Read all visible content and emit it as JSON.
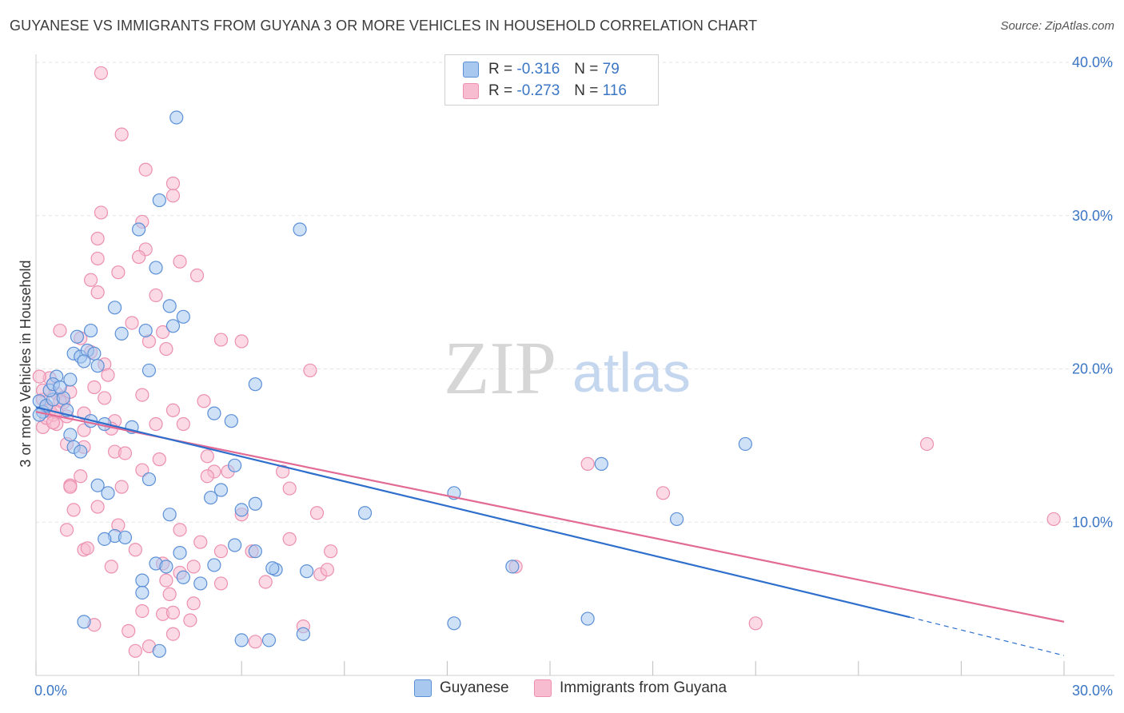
{
  "title": "GUYANESE VS IMMIGRANTS FROM GUYANA 3 OR MORE VEHICLES IN HOUSEHOLD CORRELATION CHART",
  "source": "Source: ZipAtlas.com",
  "watermark": {
    "zip": "ZIP",
    "atlas": "atlas"
  },
  "legend": {
    "r_label": "R =",
    "n_label": "N =",
    "series1": {
      "r": "-0.316",
      "n": "79"
    },
    "series2": {
      "r": "-0.273",
      "n": "116"
    }
  },
  "bottom_legend": {
    "series1": "Guyanese",
    "series2": "Immigrants from Guyana"
  },
  "colors": {
    "blue_fill": "#a8c8f0",
    "blue_stroke": "#5b8fd6",
    "blue_line": "#2f6fcc",
    "pink_fill": "#f8bcd0",
    "pink_stroke": "#ec8fb0",
    "pink_line": "#e26a95",
    "tick": "#3b76c4",
    "grid": "#e3e3e3"
  },
  "chart_data": {
    "type": "scatter",
    "title": "GUYANESE VS IMMIGRANTS FROM GUYANA 3 OR MORE VEHICLES IN HOUSEHOLD CORRELATION CHART",
    "xlabel": "",
    "ylabel": "3 or more Vehicles in Household",
    "xlim": [
      0,
      30
    ],
    "ylim": [
      0,
      40
    ],
    "x_tick_labels": [
      "0.0%",
      "30.0%"
    ],
    "y_ticks": [
      10,
      20,
      30,
      40
    ],
    "y_tick_labels": [
      "10.0%",
      "20.0%",
      "30.0%",
      "40.0%"
    ],
    "series": [
      {
        "name": "Guyanese",
        "r": -0.316,
        "n": 79,
        "trend": {
          "x0": 0,
          "y0": 17.5,
          "x1": 25.5,
          "y1": 3.8,
          "dash_to_x": 30,
          "dash_to_y": 1.3
        },
        "points": [
          [
            0.1,
            17.9
          ],
          [
            0.2,
            17.2
          ],
          [
            0.3,
            17.6
          ],
          [
            0.5,
            18.0
          ],
          [
            0.4,
            18.6
          ],
          [
            0.6,
            19.5
          ],
          [
            0.5,
            19.0
          ],
          [
            1.0,
            19.3
          ],
          [
            0.8,
            18.1
          ],
          [
            1.1,
            21.0
          ],
          [
            1.3,
            20.8
          ],
          [
            1.2,
            22.1
          ],
          [
            1.5,
            21.2
          ],
          [
            1.7,
            21.0
          ],
          [
            1.6,
            22.5
          ],
          [
            1.8,
            20.2
          ],
          [
            1.4,
            20.5
          ],
          [
            2.3,
            24.0
          ],
          [
            2.5,
            22.3
          ],
          [
            3.2,
            22.5
          ],
          [
            3.9,
            24.1
          ],
          [
            4.0,
            22.8
          ],
          [
            4.3,
            23.4
          ],
          [
            3.5,
            26.6
          ],
          [
            3.0,
            29.1
          ],
          [
            3.6,
            31.0
          ],
          [
            4.1,
            36.4
          ],
          [
            7.7,
            29.1
          ],
          [
            3.3,
            19.9
          ],
          [
            6.4,
            19.0
          ],
          [
            1.0,
            15.7
          ],
          [
            1.1,
            14.9
          ],
          [
            1.3,
            14.6
          ],
          [
            0.9,
            17.3
          ],
          [
            1.6,
            16.6
          ],
          [
            2.0,
            16.4
          ],
          [
            2.8,
            16.2
          ],
          [
            5.2,
            17.1
          ],
          [
            5.7,
            16.6
          ],
          [
            1.8,
            12.4
          ],
          [
            2.1,
            11.9
          ],
          [
            3.3,
            12.8
          ],
          [
            5.1,
            11.6
          ],
          [
            5.4,
            12.1
          ],
          [
            5.8,
            13.7
          ],
          [
            6.0,
            10.8
          ],
          [
            6.4,
            11.2
          ],
          [
            2.3,
            9.1
          ],
          [
            2.6,
            9.0
          ],
          [
            3.9,
            10.5
          ],
          [
            2.0,
            8.9
          ],
          [
            3.5,
            7.3
          ],
          [
            4.2,
            8.0
          ],
          [
            5.8,
            8.5
          ],
          [
            6.4,
            8.1
          ],
          [
            7.0,
            6.9
          ],
          [
            3.1,
            6.2
          ],
          [
            3.8,
            7.1
          ],
          [
            4.3,
            6.4
          ],
          [
            4.8,
            6.0
          ],
          [
            5.2,
            7.2
          ],
          [
            6.9,
            7.0
          ],
          [
            7.9,
            6.8
          ],
          [
            1.4,
            3.5
          ],
          [
            3.1,
            5.4
          ],
          [
            3.6,
            1.6
          ],
          [
            6.0,
            2.3
          ],
          [
            6.8,
            2.3
          ],
          [
            7.8,
            2.7
          ],
          [
            9.6,
            10.6
          ],
          [
            12.2,
            11.9
          ],
          [
            12.2,
            3.4
          ],
          [
            13.9,
            7.1
          ],
          [
            16.5,
            13.8
          ],
          [
            16.1,
            3.7
          ],
          [
            18.7,
            10.2
          ],
          [
            20.7,
            15.1
          ],
          [
            0.1,
            17.0
          ],
          [
            0.7,
            18.8
          ]
        ]
      },
      {
        "name": "Immigrants from Guyana",
        "r": -0.273,
        "n": 116,
        "trend": {
          "x0": 0,
          "y0": 17.2,
          "x1": 30,
          "y1": 3.5
        },
        "points": [
          [
            1.9,
            39.3
          ],
          [
            2.5,
            35.3
          ],
          [
            3.2,
            33.0
          ],
          [
            4.0,
            32.1
          ],
          [
            4.0,
            31.3
          ],
          [
            1.9,
            30.2
          ],
          [
            3.1,
            29.6
          ],
          [
            1.8,
            28.5
          ],
          [
            3.2,
            27.8
          ],
          [
            1.8,
            27.2
          ],
          [
            3.0,
            27.3
          ],
          [
            4.2,
            27.0
          ],
          [
            2.4,
            26.3
          ],
          [
            4.7,
            26.1
          ],
          [
            1.6,
            25.8
          ],
          [
            1.8,
            25.0
          ],
          [
            3.5,
            24.8
          ],
          [
            2.8,
            23.0
          ],
          [
            0.7,
            22.5
          ],
          [
            1.3,
            22.0
          ],
          [
            1.6,
            21.1
          ],
          [
            3.3,
            21.8
          ],
          [
            3.7,
            22.4
          ],
          [
            3.8,
            21.3
          ],
          [
            5.4,
            21.9
          ],
          [
            6.0,
            21.8
          ],
          [
            2.0,
            20.3
          ],
          [
            2.1,
            19.6
          ],
          [
            8.0,
            19.9
          ],
          [
            3.1,
            18.3
          ],
          [
            0.6,
            18.4
          ],
          [
            0.8,
            17.8
          ],
          [
            0.3,
            17.5
          ],
          [
            0.2,
            18.0
          ],
          [
            0.4,
            19.4
          ],
          [
            0.9,
            16.9
          ],
          [
            0.6,
            16.4
          ],
          [
            1.4,
            17.1
          ],
          [
            2.0,
            18.1
          ],
          [
            2.3,
            16.6
          ],
          [
            4.0,
            17.3
          ],
          [
            4.9,
            17.9
          ],
          [
            3.5,
            16.4
          ],
          [
            4.3,
            16.4
          ],
          [
            1.4,
            16.0
          ],
          [
            0.9,
            15.1
          ],
          [
            1.4,
            14.9
          ],
          [
            2.3,
            14.6
          ],
          [
            2.6,
            14.5
          ],
          [
            5.0,
            14.3
          ],
          [
            3.1,
            13.4
          ],
          [
            3.6,
            14.1
          ],
          [
            5.2,
            13.3
          ],
          [
            5.6,
            13.3
          ],
          [
            5.0,
            13.0
          ],
          [
            7.2,
            13.3
          ],
          [
            1.3,
            13.0
          ],
          [
            1.0,
            12.4
          ],
          [
            1.0,
            12.3
          ],
          [
            2.5,
            12.3
          ],
          [
            7.4,
            12.2
          ],
          [
            1.8,
            11.0
          ],
          [
            1.1,
            10.8
          ],
          [
            6.0,
            10.5
          ],
          [
            8.2,
            10.6
          ],
          [
            0.9,
            9.5
          ],
          [
            2.4,
            9.8
          ],
          [
            4.2,
            9.5
          ],
          [
            1.4,
            8.2
          ],
          [
            1.5,
            8.3
          ],
          [
            2.9,
            8.2
          ],
          [
            4.8,
            8.7
          ],
          [
            5.4,
            8.1
          ],
          [
            6.3,
            8.1
          ],
          [
            7.4,
            8.9
          ],
          [
            8.6,
            8.1
          ],
          [
            2.2,
            7.1
          ],
          [
            3.7,
            7.3
          ],
          [
            4.6,
            7.1
          ],
          [
            6.7,
            6.1
          ],
          [
            8.3,
            6.6
          ],
          [
            8.5,
            6.9
          ],
          [
            3.8,
            6.2
          ],
          [
            4.2,
            6.7
          ],
          [
            3.9,
            5.3
          ],
          [
            5.4,
            6.0
          ],
          [
            3.1,
            4.2
          ],
          [
            3.7,
            4.0
          ],
          [
            4.0,
            4.1
          ],
          [
            4.6,
            4.7
          ],
          [
            4.5,
            3.6
          ],
          [
            1.7,
            3.3
          ],
          [
            2.7,
            2.9
          ],
          [
            4.0,
            2.7
          ],
          [
            6.4,
            2.2
          ],
          [
            7.8,
            3.2
          ],
          [
            2.9,
            1.6
          ],
          [
            3.3,
            1.9
          ],
          [
            0.2,
            16.2
          ],
          [
            0.5,
            17.0
          ],
          [
            0.7,
            17.9
          ],
          [
            1.0,
            18.5
          ],
          [
            0.3,
            16.8
          ],
          [
            1.7,
            18.8
          ],
          [
            2.2,
            16.1
          ],
          [
            14.0,
            7.1
          ],
          [
            16.1,
            13.8
          ],
          [
            18.3,
            11.9
          ],
          [
            21.0,
            3.4
          ],
          [
            26.0,
            15.1
          ],
          [
            29.7,
            10.2
          ],
          [
            0.1,
            19.5
          ],
          [
            0.2,
            18.6
          ],
          [
            0.4,
            17.3
          ],
          [
            0.6,
            17.2
          ],
          [
            0.5,
            16.5
          ]
        ]
      }
    ]
  }
}
